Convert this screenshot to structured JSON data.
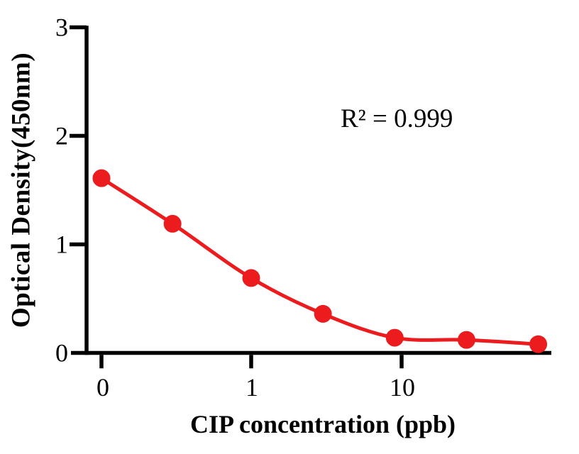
{
  "chart_data": {
    "type": "scatter",
    "subtype": "standard-curve-with-fit-line",
    "title": "",
    "xlabel": "CIP concentration (ppb)",
    "ylabel": "Optical Density(450nm)",
    "annotation": "R² = 0.999",
    "x": [
      0,
      0.3,
      1,
      3,
      9,
      27,
      81
    ],
    "y": [
      1.61,
      1.19,
      0.69,
      0.36,
      0.14,
      0.12,
      0.08
    ],
    "x_scale": "log10 with zero offset category",
    "x_tick_values": [
      0,
      1,
      10
    ],
    "x_tick_labels": [
      "0",
      "1",
      "10"
    ],
    "y_tick_values": [
      3,
      2,
      1,
      0
    ],
    "y_tick_labels": [
      "3",
      "2",
      "1",
      "0"
    ],
    "ylim": [
      0,
      3
    ],
    "grid": "off",
    "legend": "none",
    "colors": {
      "line": "#EC1B1E",
      "marker": "#EC1B1E",
      "axis": "#000000",
      "text": "#000000",
      "background": "#FFFFFF"
    }
  }
}
